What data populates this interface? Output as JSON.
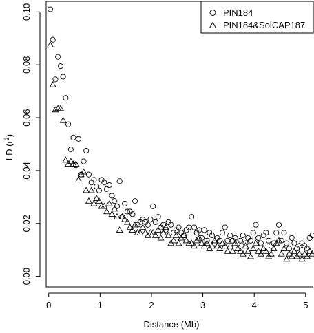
{
  "chart_data": {
    "type": "scatter",
    "xlabel": "Distance (Mb)",
    "ylabel": "LD (r2)",
    "ylabel_main": "LD (r",
    "ylabel_sup": "2",
    "ylabel_close": ")",
    "xlim": [
      -0.05,
      5.15
    ],
    "ylim": [
      -0.004,
      0.104
    ],
    "xticks": [
      0,
      1,
      2,
      3,
      4,
      5
    ],
    "yticks": [
      0.0,
      0.02,
      0.04,
      0.06,
      0.08,
      0.1
    ],
    "ytick_labels": [
      "0.00",
      "0.02",
      "0.04",
      "0.06",
      "0.08",
      "0.10"
    ],
    "grid": false,
    "legend_position": "top-right",
    "series": [
      {
        "name": "PIN184",
        "marker": "circle",
        "x": [
          0.03,
          0.08,
          0.13,
          0.18,
          0.23,
          0.28,
          0.33,
          0.38,
          0.43,
          0.48,
          0.53,
          0.58,
          0.63,
          0.68,
          0.73,
          0.78,
          0.83,
          0.88,
          0.93,
          0.98,
          1.03,
          1.08,
          1.13,
          1.18,
          1.23,
          1.28,
          1.33,
          1.38,
          1.43,
          1.48,
          1.53,
          1.58,
          1.63,
          1.68,
          1.73,
          1.78,
          1.83,
          1.88,
          1.93,
          1.98,
          2.03,
          2.08,
          2.13,
          2.18,
          2.23,
          2.28,
          2.33,
          2.38,
          2.43,
          2.48,
          2.53,
          2.58,
          2.63,
          2.68,
          2.73,
          2.78,
          2.83,
          2.88,
          2.93,
          2.98,
          3.03,
          3.08,
          3.13,
          3.18,
          3.23,
          3.28,
          3.33,
          3.38,
          3.43,
          3.48,
          3.53,
          3.58,
          3.63,
          3.68,
          3.73,
          3.78,
          3.83,
          3.88,
          3.93,
          3.98,
          4.03,
          4.08,
          4.13,
          4.18,
          4.23,
          4.28,
          4.33,
          4.38,
          4.43,
          4.48,
          4.53,
          4.58,
          4.63,
          4.68,
          4.73,
          4.78,
          4.83,
          4.88,
          4.93,
          4.98,
          5.03,
          5.08,
          5.13
        ],
        "y": [
          0.101,
          0.0895,
          0.0745,
          0.083,
          0.0795,
          0.0755,
          0.0675,
          0.0575,
          0.048,
          0.0525,
          0.042,
          0.052,
          0.0385,
          0.0435,
          0.0475,
          0.0385,
          0.0355,
          0.0365,
          0.034,
          0.0325,
          0.0365,
          0.0355,
          0.033,
          0.0345,
          0.0305,
          0.0285,
          0.0265,
          0.036,
          0.0225,
          0.0275,
          0.0245,
          0.0245,
          0.0235,
          0.0285,
          0.0195,
          0.0205,
          0.0215,
          0.0205,
          0.0195,
          0.0215,
          0.0265,
          0.0205,
          0.0225,
          0.0185,
          0.0195,
          0.0175,
          0.0205,
          0.0195,
          0.0165,
          0.0175,
          0.0185,
          0.0165,
          0.0155,
          0.0175,
          0.0185,
          0.0225,
          0.0185,
          0.0165,
          0.0175,
          0.0145,
          0.0175,
          0.0135,
          0.0165,
          0.0155,
          0.0125,
          0.0145,
          0.0135,
          0.0165,
          0.0185,
          0.0135,
          0.0155,
          0.0135,
          0.0145,
          0.0125,
          0.0135,
          0.0155,
          0.0125,
          0.0145,
          0.0135,
          0.0165,
          0.0195,
          0.0145,
          0.0125,
          0.0155,
          0.0165,
          0.0135,
          0.0115,
          0.0125,
          0.0165,
          0.0195,
          0.0135,
          0.0165,
          0.0125,
          0.0105,
          0.0145,
          0.0125,
          0.0105,
          0.0115,
          0.0125,
          0.0115,
          0.0105,
          0.0145,
          0.0155
        ]
      },
      {
        "name": "PIN184&SolCAP187",
        "marker": "triangle",
        "x": [
          0.03,
          0.08,
          0.13,
          0.18,
          0.23,
          0.28,
          0.33,
          0.38,
          0.43,
          0.48,
          0.53,
          0.58,
          0.63,
          0.68,
          0.73,
          0.78,
          0.83,
          0.88,
          0.93,
          0.98,
          1.03,
          1.08,
          1.13,
          1.18,
          1.23,
          1.28,
          1.33,
          1.38,
          1.43,
          1.48,
          1.53,
          1.58,
          1.63,
          1.68,
          1.73,
          1.78,
          1.83,
          1.88,
          1.93,
          1.98,
          2.03,
          2.08,
          2.13,
          2.18,
          2.23,
          2.28,
          2.33,
          2.38,
          2.43,
          2.48,
          2.53,
          2.58,
          2.63,
          2.68,
          2.73,
          2.78,
          2.83,
          2.88,
          2.93,
          2.98,
          3.03,
          3.08,
          3.13,
          3.18,
          3.23,
          3.28,
          3.33,
          3.38,
          3.43,
          3.48,
          3.53,
          3.58,
          3.63,
          3.68,
          3.73,
          3.78,
          3.83,
          3.88,
          3.93,
          3.98,
          4.03,
          4.08,
          4.13,
          4.18,
          4.23,
          4.28,
          4.33,
          4.38,
          4.43,
          4.48,
          4.53,
          4.58,
          4.63,
          4.68,
          4.73,
          4.78,
          4.83,
          4.88,
          4.93,
          4.98,
          5.03,
          5.08,
          5.13
        ],
        "y": [
          0.0875,
          0.0725,
          0.063,
          0.0635,
          0.0635,
          0.059,
          0.044,
          0.0425,
          0.0435,
          0.0425,
          0.0425,
          0.0365,
          0.0385,
          0.0395,
          0.0325,
          0.0285,
          0.0325,
          0.0275,
          0.0295,
          0.0285,
          0.0265,
          0.0265,
          0.0245,
          0.0275,
          0.0235,
          0.0255,
          0.0225,
          0.0175,
          0.0225,
          0.0215,
          0.0205,
          0.0185,
          0.0175,
          0.0195,
          0.0165,
          0.0165,
          0.0185,
          0.0165,
          0.0155,
          0.0165,
          0.0165,
          0.0155,
          0.0175,
          0.0145,
          0.0165,
          0.0185,
          0.0155,
          0.0125,
          0.0135,
          0.0155,
          0.0125,
          0.0145,
          0.0155,
          0.0135,
          0.0125,
          0.0125,
          0.0115,
          0.0135,
          0.0145,
          0.0125,
          0.0115,
          0.0125,
          0.0105,
          0.0115,
          0.0135,
          0.0115,
          0.0105,
          0.0125,
          0.0115,
          0.0095,
          0.0115,
          0.0095,
          0.0125,
          0.0105,
          0.0095,
          0.0085,
          0.0115,
          0.0095,
          0.0075,
          0.0105,
          0.0125,
          0.0095,
          0.0085,
          0.0105,
          0.0095,
          0.0075,
          0.0085,
          0.0105,
          0.0125,
          0.0135,
          0.0085,
          0.0105,
          0.0065,
          0.0085,
          0.0075,
          0.0095,
          0.0075,
          0.0085,
          0.0065,
          0.0085,
          0.0075,
          0.0095,
          0.0085
        ]
      }
    ]
  }
}
